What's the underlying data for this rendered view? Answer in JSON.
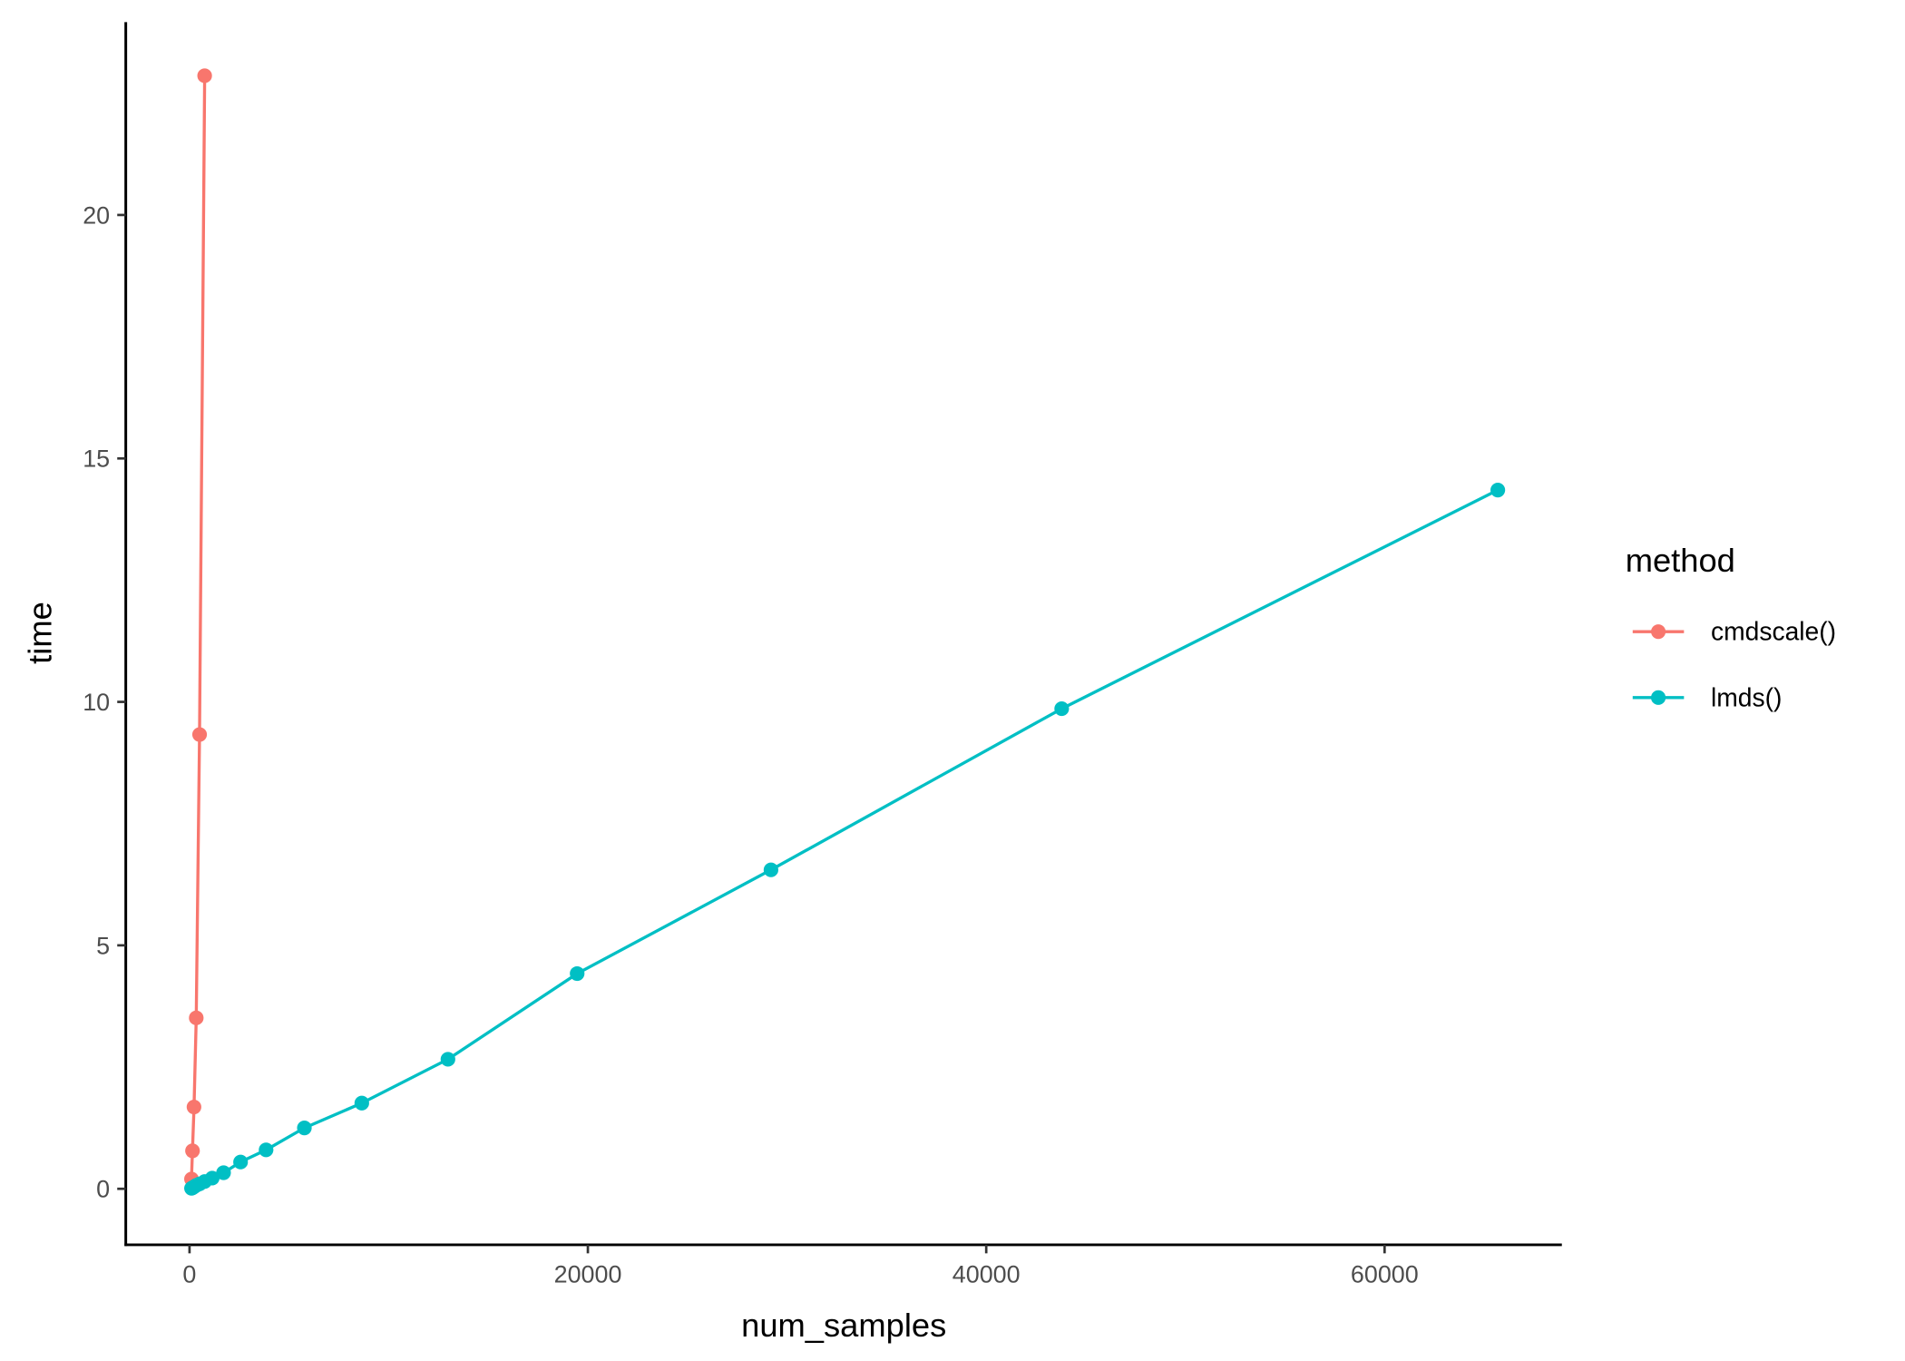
{
  "chart_data": {
    "type": "line",
    "title": "",
    "xlabel": "num_samples",
    "ylabel": "time",
    "xlim": [
      -3200,
      68900
    ],
    "ylim": [
      -1.15,
      23.96
    ],
    "xticks": [
      0,
      20000,
      40000,
      60000
    ],
    "xtick_labels": [
      "0",
      "20000",
      "40000",
      "60000"
    ],
    "yticks": [
      0,
      5,
      10,
      15,
      20
    ],
    "ytick_labels": [
      "0",
      "5",
      "10",
      "15",
      "20"
    ],
    "grid": false,
    "legend": {
      "title": "method",
      "position": "right"
    },
    "series": [
      {
        "name": "cmdscale()",
        "color": "#F8766D",
        "x": [
          100,
          150,
          225,
          338,
          506,
          760
        ],
        "y": [
          0.2,
          0.78,
          1.68,
          3.51,
          9.33,
          22.86
        ]
      },
      {
        "name": "lmds()",
        "color": "#00BFC4",
        "x": [
          100,
          150,
          225,
          338,
          506,
          760,
          1139,
          1709,
          2563,
          3844,
          5767,
          8650,
          12975,
          19462,
          29193,
          43789,
          65684
        ],
        "y": [
          0.01,
          0.02,
          0.04,
          0.07,
          0.1,
          0.15,
          0.22,
          0.33,
          0.55,
          0.8,
          1.25,
          1.76,
          2.66,
          4.42,
          6.55,
          9.86,
          14.35
        ]
      }
    ]
  }
}
